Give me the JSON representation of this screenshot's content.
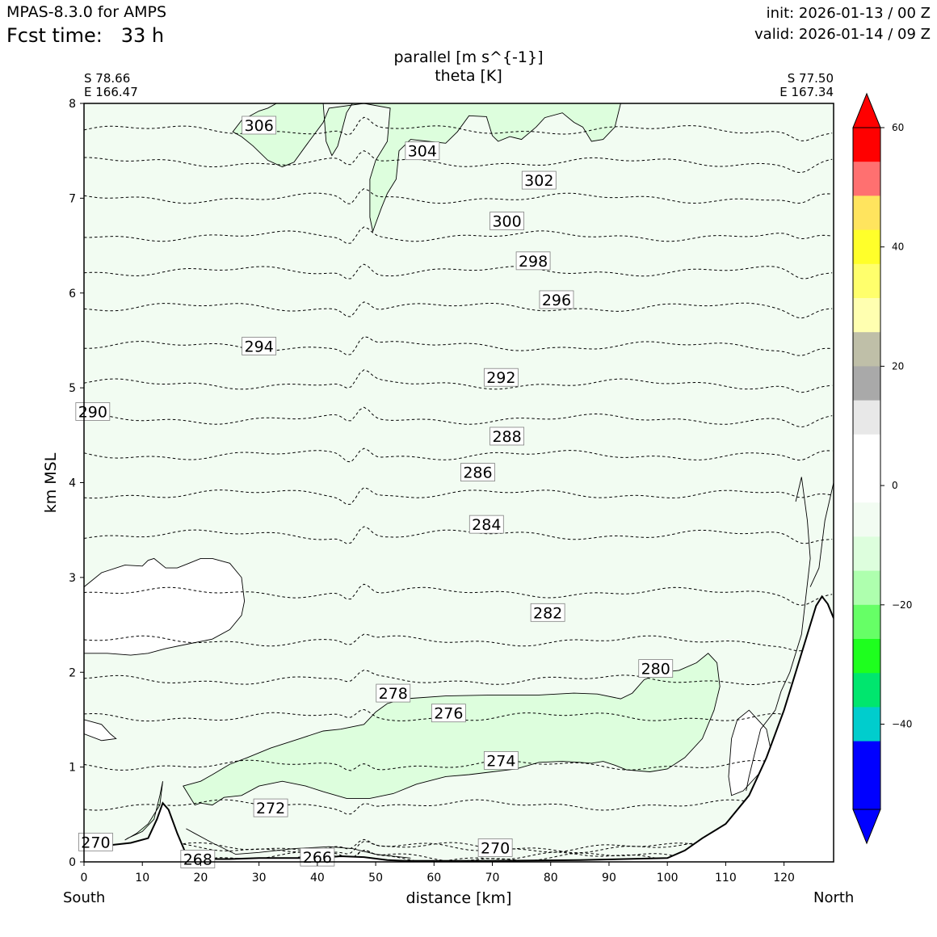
{
  "header": {
    "model": "MPAS-8.3.0 for AMPS",
    "fcst_time": "Fcst time:   33 h",
    "init": "init: 2026-01-13 / 00 Z",
    "valid": "valid: 2026-01-14 / 09 Z"
  },
  "chart_title": {
    "line1": "parallel [m s^{-1}]",
    "line2": "theta [K]"
  },
  "endpoints": {
    "left_lat": "S 78.66",
    "left_lon": "E 166.47",
    "right_lat": "S 77.50",
    "right_lon": "E 167.34"
  },
  "direction_labels": {
    "left": "South",
    "right": "North"
  },
  "chart_data": {
    "type": "contour",
    "xlabel": "distance [km]",
    "ylabel": "km MSL",
    "xlim": [
      0,
      128.5
    ],
    "ylim": [
      0,
      8
    ],
    "xticks": [
      0,
      10,
      20,
      30,
      40,
      50,
      60,
      70,
      80,
      90,
      100,
      110,
      120
    ],
    "yticks": [
      0,
      1,
      2,
      3,
      4,
      5,
      6,
      7,
      8
    ],
    "theta_contours": [
      {
        "label": "306",
        "x": 30.0,
        "y": 7.77,
        "base": 7.72
      },
      {
        "label": "304",
        "x": 58.0,
        "y": 7.5,
        "base": 7.38
      },
      {
        "label": "302",
        "x": 78.0,
        "y": 7.19,
        "base": 7.0
      },
      {
        "label": "300",
        "x": 72.5,
        "y": 6.76,
        "base": 6.6
      },
      {
        "label": "298",
        "x": 77.0,
        "y": 6.34,
        "base": 6.23
      },
      {
        "label": "296",
        "x": 81.0,
        "y": 5.93,
        "base": 5.85
      },
      {
        "label": "294",
        "x": 30.0,
        "y": 5.44,
        "base": 5.44
      },
      {
        "label": "292",
        "x": 71.5,
        "y": 5.11,
        "base": 5.04
      },
      {
        "label": "290",
        "x": 1.5,
        "y": 4.75,
        "base": 4.67
      },
      {
        "label": "288",
        "x": 72.5,
        "y": 4.49,
        "base": 4.29
      },
      {
        "label": "286",
        "x": 67.5,
        "y": 4.11,
        "base": 3.88
      },
      {
        "label": "284",
        "x": 69.0,
        "y": 3.56,
        "base": 3.45
      },
      {
        "label": "282",
        "x": 79.5,
        "y": 2.63,
        "base": 2.84
      },
      {
        "label": "280",
        "x": 98.0,
        "y": 2.04,
        "base": 2.33
      },
      {
        "label": "278",
        "x": 53.0,
        "y": 1.78,
        "base": 1.92
      },
      {
        "label": "276",
        "x": 62.5,
        "y": 1.57,
        "base": 1.53
      },
      {
        "label": "274",
        "x": 71.5,
        "y": 1.07,
        "base": 1.02
      },
      {
        "label": "272",
        "x": 32.0,
        "y": 0.57,
        "base": 0.6
      },
      {
        "label": "270",
        "x": 2.0,
        "y": 0.21,
        "base": 0.15
      },
      {
        "label": "270",
        "x": 70.5,
        "y": 0.15,
        "base": 0.15
      },
      {
        "label": "268",
        "x": 19.5,
        "y": 0.03,
        "base": 0.05
      },
      {
        "label": "266",
        "x": 40.0,
        "y": 0.05,
        "base": 0.05
      }
    ],
    "terrain": [
      [
        0,
        0.15
      ],
      [
        5,
        0.18
      ],
      [
        8,
        0.2
      ],
      [
        11,
        0.25
      ],
      [
        12.5,
        0.45
      ],
      [
        13.5,
        0.62
      ],
      [
        14.5,
        0.55
      ],
      [
        16,
        0.3
      ],
      [
        17.5,
        0.08
      ],
      [
        18.5,
        0.02
      ],
      [
        20,
        0.03
      ],
      [
        25,
        0.03
      ],
      [
        30,
        0.04
      ],
      [
        40,
        0.04
      ],
      [
        44,
        0.06
      ],
      [
        48,
        0.05
      ],
      [
        52,
        0.02
      ],
      [
        55,
        0.01
      ],
      [
        70,
        0.01
      ],
      [
        85,
        0.02
      ],
      [
        100,
        0.04
      ],
      [
        103,
        0.12
      ],
      [
        106,
        0.25
      ],
      [
        110,
        0.4
      ],
      [
        114,
        0.7
      ],
      [
        117,
        1.1
      ],
      [
        120,
        1.6
      ],
      [
        122,
        2.0
      ],
      [
        124,
        2.4
      ],
      [
        125.5,
        2.7
      ],
      [
        126.5,
        2.8
      ],
      [
        127.5,
        2.72
      ],
      [
        128.5,
        2.57
      ]
    ],
    "colorbar": {
      "ticks": [
        60,
        40,
        20,
        0,
        -20,
        -40
      ],
      "colors": [
        "#ff0000",
        "#ff7070",
        "#ffe45e",
        "#ffff2a",
        "#ffff6c",
        "#ffffb0",
        "#bfbfa8",
        "#a9a9a9",
        "#e8e8e8",
        "#ffffff",
        "#ffffff",
        "#f2fcf2",
        "#ddfedd",
        "#aeffae",
        "#66ff66",
        "#1eff1e",
        "#00e66e",
        "#00cdcd",
        "#0000ff",
        "#0000ff"
      ],
      "extend": "both"
    }
  }
}
